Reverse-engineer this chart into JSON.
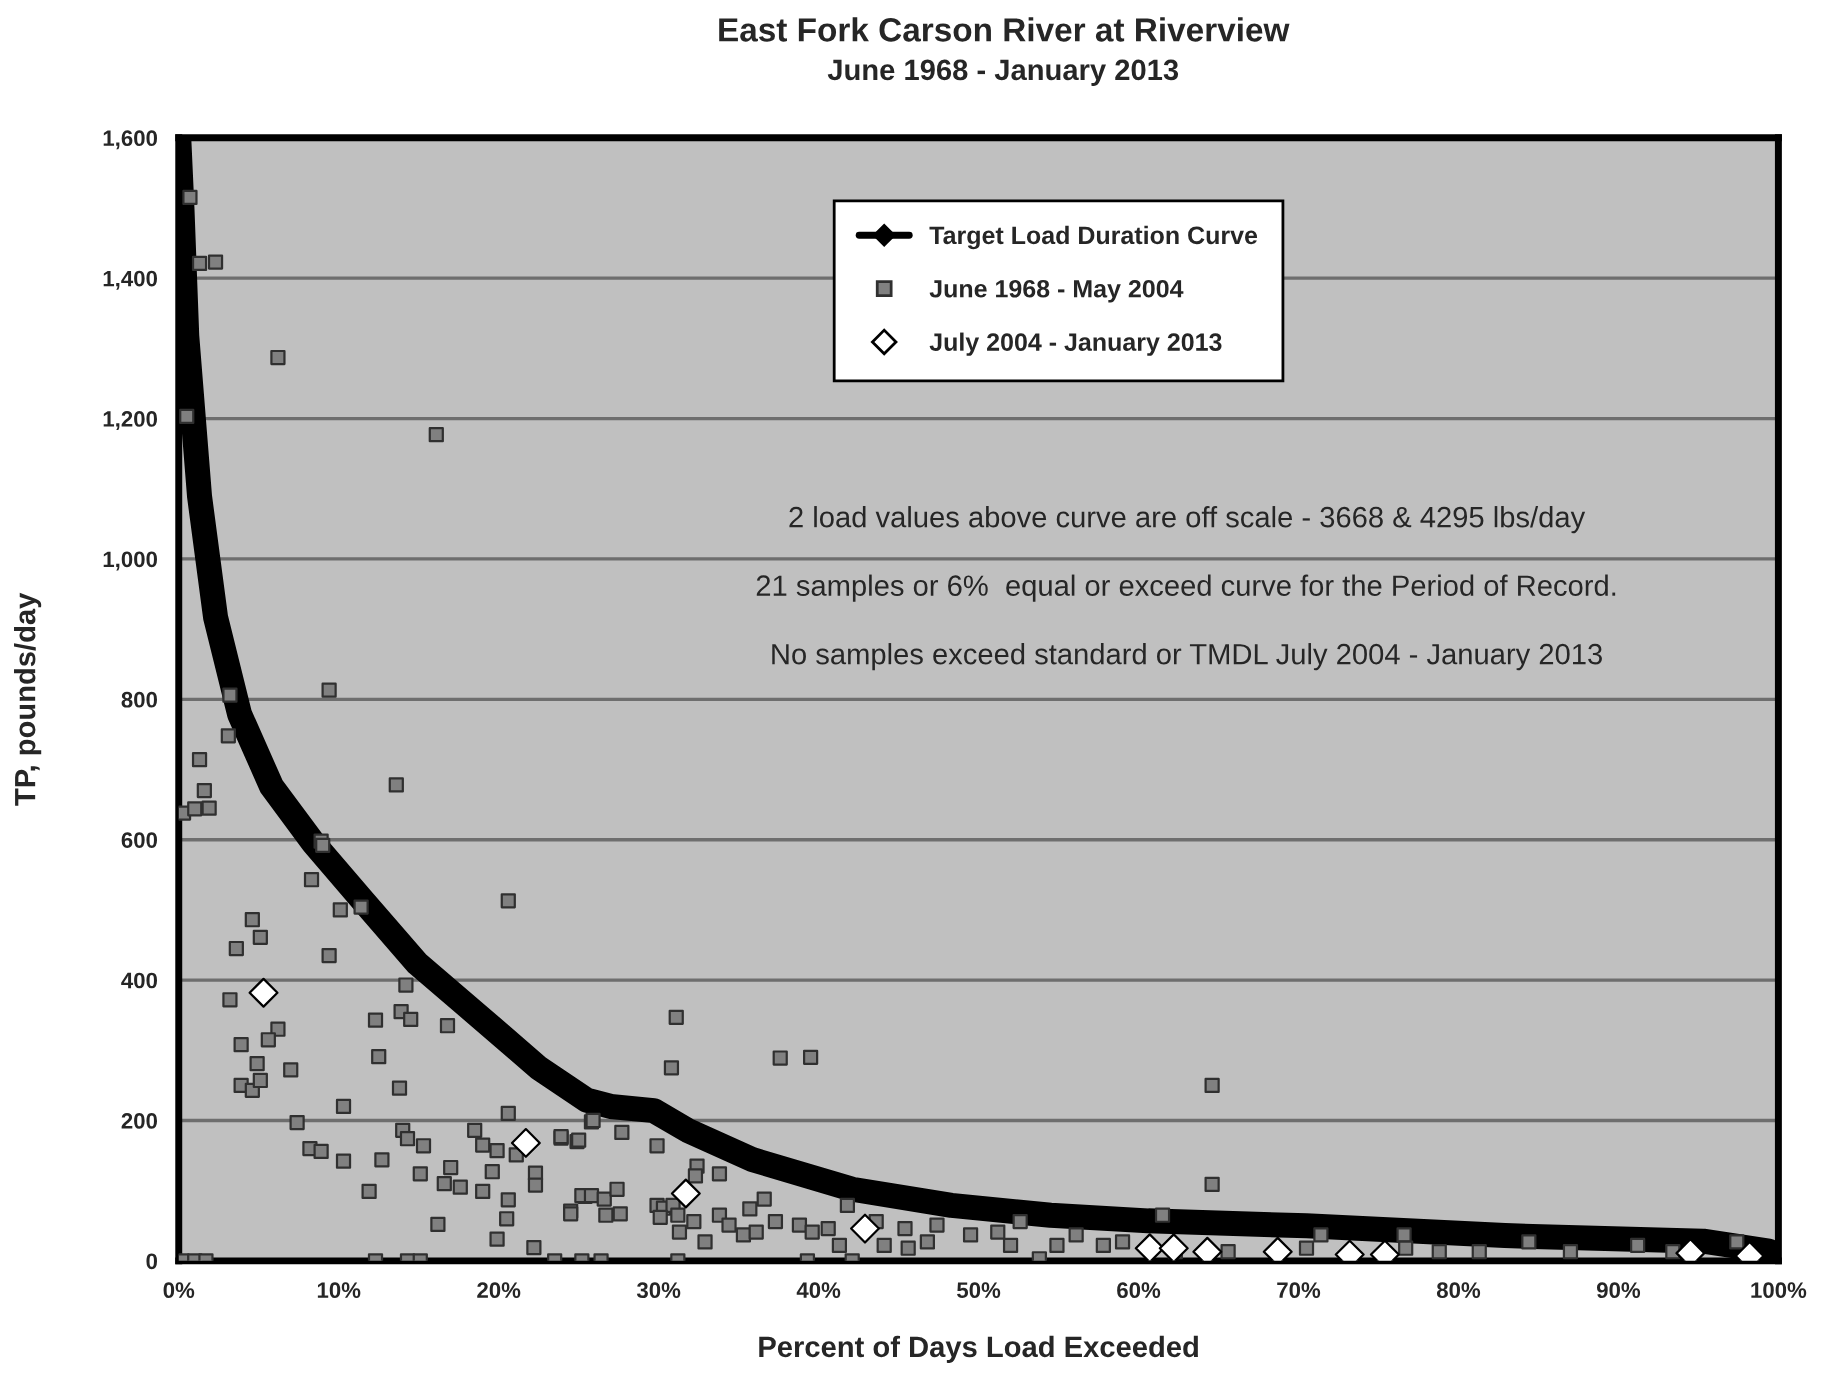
{
  "chart_data": {
    "type": "scatter",
    "title": "East Fork Carson River at Riverview",
    "subtitle": "June 1968 - January 2013",
    "xlabel": "Percent of Days Load Exceeded",
    "ylabel": "TP, pounds/day",
    "xlim": [
      0,
      100
    ],
    "ylim": [
      0,
      1600
    ],
    "xticks": [
      {
        "value": 0,
        "label": "0%"
      },
      {
        "value": 10,
        "label": "10%"
      },
      {
        "value": 20,
        "label": "20%"
      },
      {
        "value": 30,
        "label": "30%"
      },
      {
        "value": 40,
        "label": "40%"
      },
      {
        "value": 50,
        "label": "50%"
      },
      {
        "value": 60,
        "label": "60%"
      },
      {
        "value": 70,
        "label": "70%"
      },
      {
        "value": 80,
        "label": "80%"
      },
      {
        "value": 90,
        "label": "90%"
      },
      {
        "value": 100,
        "label": "100%"
      }
    ],
    "yticks": [
      0,
      200,
      400,
      600,
      800,
      {
        "value": 1000,
        "label": "1,000"
      },
      {
        "value": 1200,
        "label": "1,200"
      },
      {
        "value": 1400,
        "label": "1,400"
      },
      {
        "value": 1600,
        "label": "1,600"
      }
    ],
    "grid": "y",
    "legend": "top",
    "annotations": [
      "2 load values above curve are off scale - 3668 & 4295 lbs/day",
      "21 samples or 6%  equal or exceed curve for the Period of Record.",
      "No samples exceed standard or TMDL July 2004 - January 2013"
    ],
    "series": [
      {
        "name": "Target Load Duration Curve",
        "type": "line",
        "marker": "diamond",
        "color": "#000000",
        "x": [
          0,
          0.2,
          0.5,
          1.3,
          2.3,
          3.8,
          5.8,
          8.4,
          11.4,
          14.9,
          19.0,
          22.5,
          25.5,
          27.0,
          29.7,
          31.8,
          35.9,
          42.1,
          48.3,
          54.5,
          60.6,
          70.5,
          82.9,
          95.3,
          99.4,
          100
        ],
        "values": [
          1600,
          1500,
          1318,
          1089,
          917,
          779,
          676,
          596,
          516,
          424,
          344,
          275,
          229,
          220,
          214,
          186,
          144,
          102,
          79,
          65,
          57,
          50,
          36,
          28,
          14,
          5
        ]
      },
      {
        "name": "June 1968 - May 2004",
        "marker": "square",
        "color": "#808080",
        "x": [
          0.7,
          1.3,
          2.3,
          6.2,
          16.1,
          0.5,
          3.2,
          9.4,
          3.1,
          1.3,
          1.6,
          0.3,
          1.0,
          1.9,
          13.6,
          8.9,
          9.0,
          8.3,
          10.1,
          11.4,
          20.6,
          4.6,
          5.1,
          3.6,
          9.4,
          3.2,
          14.2,
          12.3,
          13.9,
          14.5,
          16.8,
          6.2,
          5.6,
          3.9,
          12.5,
          4.9,
          7.0,
          3.9,
          4.6,
          5.1,
          13.8,
          10.3,
          20.6,
          7.4,
          8.2,
          8.9,
          10.3,
          12.7,
          14.0,
          14.3,
          15.3,
          15.1,
          11.9,
          17.0,
          16.6,
          17.6,
          18.5,
          19.0,
          19.9,
          19.6,
          19.0,
          20.6,
          21.1,
          22.3,
          22.3,
          20.5,
          16.2,
          19.9,
          22.2,
          23.9,
          24.9,
          24.5,
          25.4,
          25.8,
          0.2,
          1.0,
          1.7,
          12.3,
          14.3,
          15.1,
          23.5,
          31.1,
          30.8,
          37.6,
          39.5,
          23.9,
          25.0,
          27.7,
          25.9,
          29.9,
          32.4,
          32.3,
          33.8,
          25.2,
          25.8,
          26.6,
          27.4,
          26.7,
          27.6,
          24.5,
          29.9,
          30.3,
          30.9,
          30.1,
          31.2,
          32.2,
          31.3,
          32.9,
          36.6,
          33.8,
          34.4,
          35.7,
          35.3,
          36.1,
          37.3,
          38.8,
          39.6,
          40.6,
          41.3,
          41.8,
          43.6,
          44.1,
          45.4,
          45.6,
          47.4,
          46.8,
          49.5,
          51.2,
          52.6,
          52.0,
          53.8,
          54.9,
          56.1,
          57.8,
          59.0,
          25.2,
          26.4,
          31.2,
          39.3,
          42.1,
          64.6,
          64.6,
          61.5,
          71.4,
          76.6,
          84.4,
          91.2,
          97.4,
          70.5,
          78.8,
          87.0,
          62.3,
          65.6,
          76.7,
          81.3,
          93.4
        ],
        "values": [
          1515,
          1421,
          1423,
          1287,
          1177,
          1203,
          806,
          813,
          748,
          714,
          670,
          638,
          644,
          645,
          678,
          598,
          592,
          543,
          500,
          504,
          513,
          486,
          461,
          445,
          435,
          372,
          393,
          343,
          355,
          344,
          335,
          330,
          315,
          308,
          291,
          281,
          272,
          250,
          243,
          257,
          246,
          220,
          210,
          197,
          160,
          156,
          142,
          144,
          186,
          174,
          164,
          124,
          99,
          133,
          110,
          105,
          186,
          165,
          157,
          127,
          99,
          87,
          151,
          125,
          108,
          60,
          52,
          31,
          19,
          175,
          170,
          71,
          92,
          198,
          0,
          0,
          0,
          0,
          0,
          0,
          0,
          347,
          275,
          289,
          290,
          177,
          172,
          183,
          200,
          164,
          135,
          121,
          124,
          93,
          93,
          88,
          102,
          65,
          67,
          67,
          79,
          75,
          79,
          62,
          65,
          56,
          41,
          27,
          88,
          65,
          51,
          74,
          37,
          41,
          56,
          51,
          41,
          46,
          22,
          79,
          56,
          22,
          46,
          18,
          51,
          27,
          37,
          41,
          56,
          22,
          3,
          22,
          37,
          22,
          27,
          0,
          0,
          0,
          0,
          0,
          250,
          109,
          65,
          37,
          37,
          27,
          22,
          27,
          18,
          13,
          13,
          13,
          13,
          18,
          13,
          13
        ]
      },
      {
        "name": "July 2004 - January 2013",
        "marker": "diamond",
        "color": "#ffffff",
        "x": [
          5.3,
          21.7,
          31.7,
          42.9,
          60.7,
          62.2,
          64.3,
          68.7,
          73.2,
          75.4,
          94.5,
          98.2
        ],
        "values": [
          382,
          168,
          96,
          46,
          18,
          18,
          13,
          13,
          9,
          9,
          11,
          7
        ]
      }
    ]
  }
}
